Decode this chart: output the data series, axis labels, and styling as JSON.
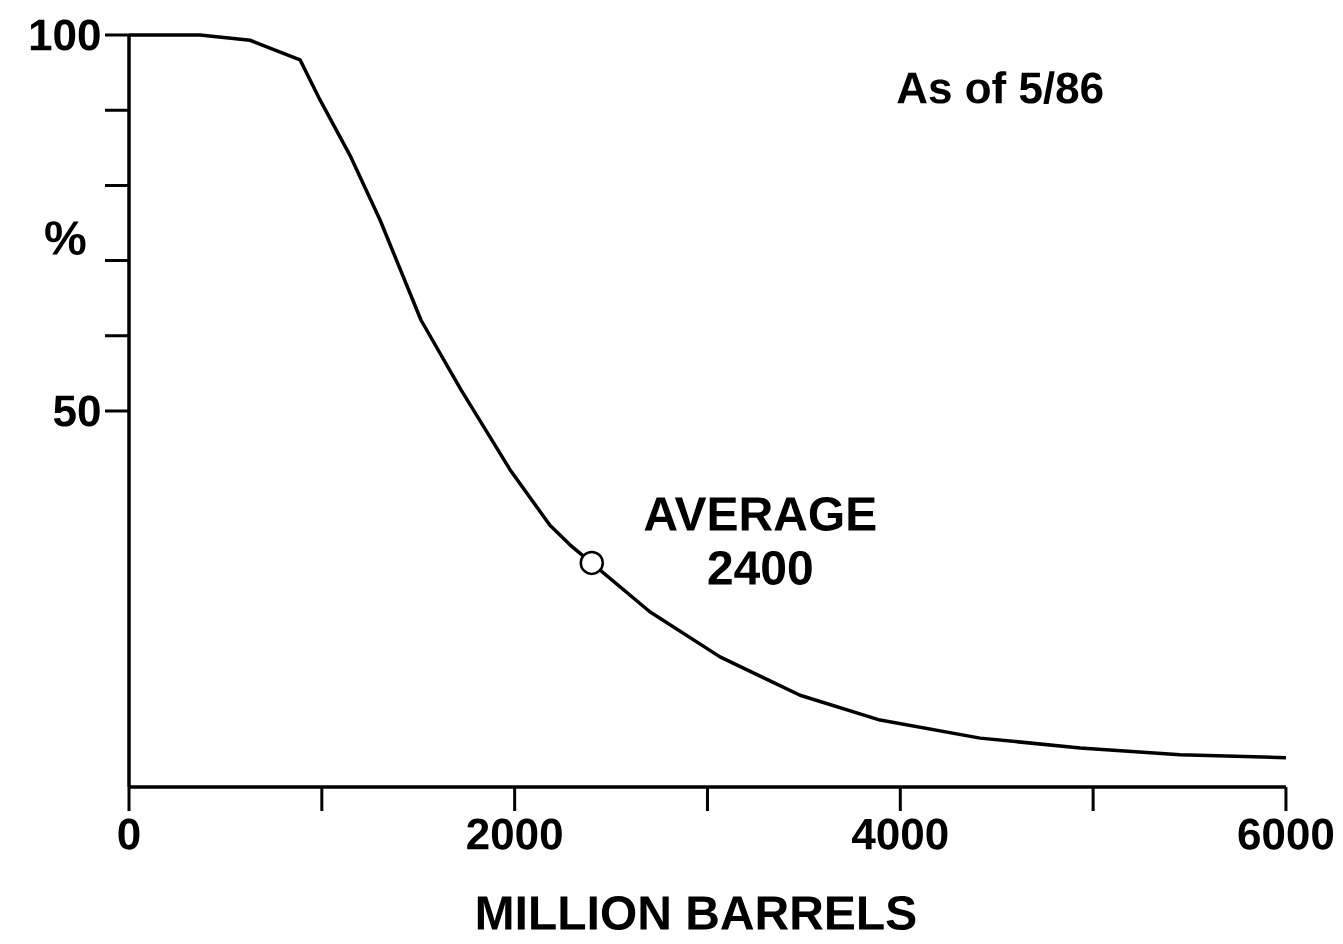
{
  "chart_data": {
    "type": "line",
    "xlabel": "MILLION   BARRELS",
    "ylabel": "%",
    "x": [
      0,
      368,
      628,
      887,
      990,
      1146,
      1302,
      1514,
      1722,
      1976,
      2183,
      2287,
      2701,
      3065,
      3480,
      3895,
      4414,
      4933,
      5451,
      6000
    ],
    "series": [
      {
        "color": "#000000",
        "values": [
          100,
          100,
          99.3,
          96.7,
          91.4,
          84,
          75.4,
          62.1,
          52.8,
          42.2,
          34.8,
          32.2,
          23.3,
          17.3,
          12.2,
          8.9,
          6.5,
          5.2,
          4.3,
          3.9
        ]
      }
    ],
    "xlim": [
      0,
      6000
    ],
    "ylim": [
      0,
      100
    ],
    "xticks": [
      0,
      2000,
      4000,
      6000
    ],
    "yticks": [
      50,
      100
    ],
    "marker": "none",
    "line_style": "solid",
    "grid": false,
    "annotations": [
      "As of 5/86",
      {
        "text": "AVERAGE 2400",
        "x": 2400,
        "y": 29.8
      }
    ]
  }
}
